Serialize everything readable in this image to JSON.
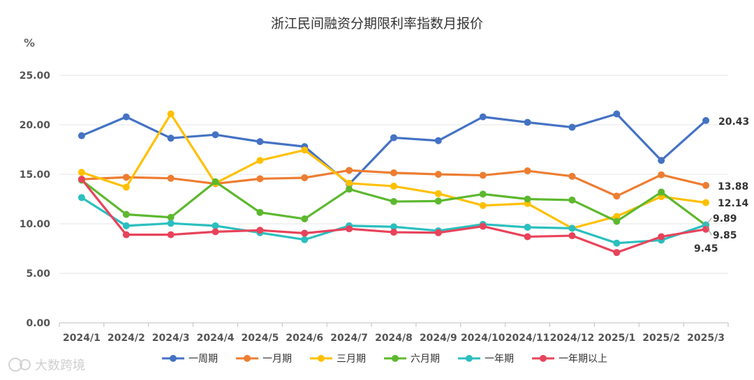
{
  "watermark": "大数跨境",
  "colors": {
    "一周期": "#4472C4",
    "一月期": "#ED7D31",
    "三月期": "#FFC000",
    "六月期": "#5DB82E",
    "一年期": "#2BBFBF",
    "一年期以上": "#E8435A",
    "grid": "#e6e6e6"
  },
  "chart_data": {
    "type": "line",
    "title": "浙江民间融资分期限利率指数月报价",
    "ylabel": "%",
    "ylim": [
      0,
      25
    ],
    "yticks": [
      "0.00",
      "5.00",
      "10.00",
      "15.00",
      "20.00",
      "25.00"
    ],
    "grid": true,
    "legend_position": "bottom",
    "categories": [
      "2024/1",
      "2024/2",
      "2024/3",
      "2024/4",
      "2024/5",
      "2024/6",
      "2024/7",
      "2024/8",
      "2024/9",
      "2024/10",
      "2024/11",
      "2024/12",
      "2025/1",
      "2025/2",
      "2025/3"
    ],
    "series": [
      {
        "name": "一周期",
        "values": [
          18.9,
          20.8,
          18.65,
          19.0,
          18.3,
          17.8,
          14.0,
          18.7,
          18.4,
          20.8,
          20.25,
          19.75,
          21.1,
          16.4,
          20.43
        ],
        "end_label": "20.43"
      },
      {
        "name": "一月期",
        "values": [
          14.5,
          14.7,
          14.6,
          14.05,
          14.55,
          14.65,
          15.4,
          15.15,
          15.0,
          14.9,
          15.35,
          14.8,
          12.8,
          14.95,
          13.88
        ],
        "end_label": "13.88"
      },
      {
        "name": "三月期",
        "values": [
          15.2,
          13.7,
          21.1,
          14.1,
          16.4,
          17.45,
          14.1,
          13.8,
          13.05,
          11.85,
          12.05,
          9.55,
          10.75,
          12.75,
          12.14
        ],
        "end_label": "12.14"
      },
      {
        "name": "六月期",
        "values": [
          14.4,
          10.95,
          10.65,
          14.25,
          11.15,
          10.5,
          13.5,
          12.25,
          12.3,
          13.0,
          12.5,
          12.4,
          10.25,
          13.2,
          9.85
        ],
        "end_label": "9.85"
      },
      {
        "name": "一年期",
        "values": [
          12.65,
          9.8,
          10.05,
          9.8,
          9.1,
          8.4,
          9.8,
          9.7,
          9.3,
          9.95,
          9.65,
          9.55,
          8.05,
          8.35,
          9.89
        ],
        "end_label": "9.89"
      },
      {
        "name": "一年期以上",
        "values": [
          14.5,
          8.9,
          8.9,
          9.2,
          9.35,
          9.05,
          9.5,
          9.15,
          9.1,
          9.75,
          8.7,
          8.8,
          7.1,
          8.7,
          9.45
        ],
        "end_label": "9.45"
      }
    ]
  }
}
